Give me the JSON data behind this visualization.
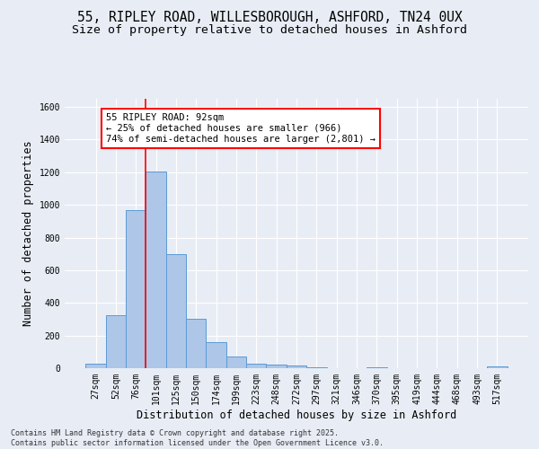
{
  "title1": "55, RIPLEY ROAD, WILLESBOROUGH, ASHFORD, TN24 0UX",
  "title2": "Size of property relative to detached houses in Ashford",
  "xlabel": "Distribution of detached houses by size in Ashford",
  "ylabel": "Number of detached properties",
  "categories": [
    "27sqm",
    "52sqm",
    "76sqm",
    "101sqm",
    "125sqm",
    "150sqm",
    "174sqm",
    "199sqm",
    "223sqm",
    "248sqm",
    "272sqm",
    "297sqm",
    "321sqm",
    "346sqm",
    "370sqm",
    "395sqm",
    "419sqm",
    "444sqm",
    "468sqm",
    "493sqm",
    "517sqm"
  ],
  "values": [
    25,
    325,
    970,
    1205,
    700,
    305,
    160,
    70,
    30,
    20,
    15,
    5,
    0,
    0,
    5,
    0,
    0,
    0,
    0,
    0,
    10
  ],
  "bar_color": "#aec6e8",
  "bar_edge_color": "#5b9bd5",
  "background_color": "#e8edf5",
  "grid_color": "#ffffff",
  "vline_color": "red",
  "vline_x_index": 2.5,
  "annotation_text": "55 RIPLEY ROAD: 92sqm\n← 25% of detached houses are smaller (966)\n74% of semi-detached houses are larger (2,801) →",
  "annotation_box_color": "white",
  "annotation_box_edge_color": "red",
  "ylim": [
    0,
    1650
  ],
  "yticks": [
    0,
    200,
    400,
    600,
    800,
    1000,
    1200,
    1400,
    1600
  ],
  "footnote": "Contains HM Land Registry data © Crown copyright and database right 2025.\nContains public sector information licensed under the Open Government Licence v3.0.",
  "title_fontsize": 10.5,
  "subtitle_fontsize": 9.5,
  "axis_label_fontsize": 8.5,
  "tick_fontsize": 7,
  "footnote_fontsize": 6,
  "annotation_fontsize": 7.5
}
